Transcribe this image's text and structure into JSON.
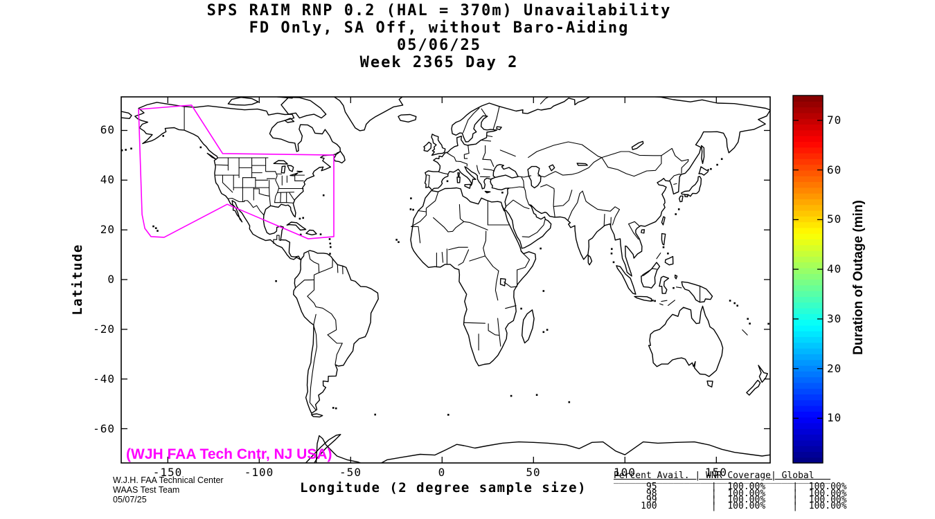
{
  "figure": {
    "title_lines": [
      "SPS RAIM RNP 0.2 (HAL = 370m) Unavailability",
      "FD Only, SA Off, without Baro-Aiding",
      "05/06/25",
      "Week 2365 Day 2"
    ]
  },
  "axes": {
    "x_label": "Longitude (2 degree sample size)",
    "y_label": "Latitude",
    "x_ticks": [
      "-150",
      "-100",
      "-50",
      "0",
      "50",
      "100",
      "150"
    ],
    "y_ticks": [
      "60",
      "40",
      "20",
      "0",
      "-20",
      "-40",
      "-60"
    ]
  },
  "colorbar": {
    "label": "Duration of Outage (min)",
    "ticks": [
      "10",
      "20",
      "30",
      "40",
      "50",
      "60",
      "70"
    ]
  },
  "credit": {
    "text": "(WJH FAA Tech Cntr, NJ USA)",
    "color": "#FF00FF"
  },
  "footer": {
    "lines": [
      "W.J.H. FAA Technical Center",
      "WAAS Test Team",
      "05/07/25"
    ]
  },
  "availability_table": {
    "header_text": "Percent Avail. | WNR Coverage| Global   ",
    "separator_text": "________________________________________",
    "row_texts": [
      "      95          |  100.00%     |  100.00%",
      "      98          |  100.00%     |  100.00%",
      "      99          |  100.00%     |  100.00%",
      "     100          |  100.00%     |  100.00%"
    ],
    "columns": [
      "Percent Avail.",
      "WNR Coverage",
      "Global"
    ],
    "rows": [
      [
        "95",
        "100.00%",
        "100.00%"
      ],
      [
        "98",
        "100.00%",
        "100.00%"
      ],
      [
        "99",
        "100.00%",
        "100.00%"
      ],
      [
        "100",
        "100.00%",
        "100.00%"
      ]
    ]
  },
  "chart_data": {
    "type": "heatmap",
    "title": "SPS RAIM RNP 0.2 (HAL = 370m) Unavailability, FD Only, SA Off, without Baro-Aiding, 05/06/25, Week 2365 Day 2",
    "xlabel": "Longitude (2 degree sample size)",
    "ylabel": "Latitude",
    "xlim": [
      -175.5,
      179.5
    ],
    "ylim": [
      -73.5,
      73.5
    ],
    "x_ticks": [
      -150,
      -100,
      -50,
      0,
      50,
      100,
      150
    ],
    "y_ticks": [
      60,
      40,
      20,
      0,
      -20,
      -40,
      -60
    ],
    "grid": false,
    "colorbar": {
      "label": "Duration of Outage (min)",
      "min": 1,
      "max": 75,
      "ticks": [
        10,
        20,
        30,
        40,
        50,
        60,
        70
      ],
      "colormap": "jet"
    },
    "values": [],
    "note": "No outage cells are plotted; map is blank (availability 100% at every 2-degree sample)",
    "waas_boundary_color": "#FF00FF",
    "waas_boundary_lonlat": [
      [
        -166,
        68.5
      ],
      [
        -137,
        70.2
      ],
      [
        -120,
        50.7
      ],
      [
        -59.2,
        50.1
      ],
      [
        -59.2,
        17.3
      ],
      [
        -73.2,
        16.4
      ],
      [
        -117.5,
        30.3
      ],
      [
        -152,
        17.0
      ],
      [
        -159.2,
        17.3
      ],
      [
        -162.6,
        20.6
      ],
      [
        -164.1,
        26.2
      ],
      [
        -166,
        68.5
      ]
    ],
    "availability_summary": {
      "percent_avail": [
        95,
        98,
        99,
        100
      ],
      "wnr_coverage": [
        "100.00%",
        "100.00%",
        "100.00%",
        "100.00%"
      ],
      "global": [
        "100.00%",
        "100.00%",
        "100.00%",
        "100.00%"
      ]
    }
  }
}
